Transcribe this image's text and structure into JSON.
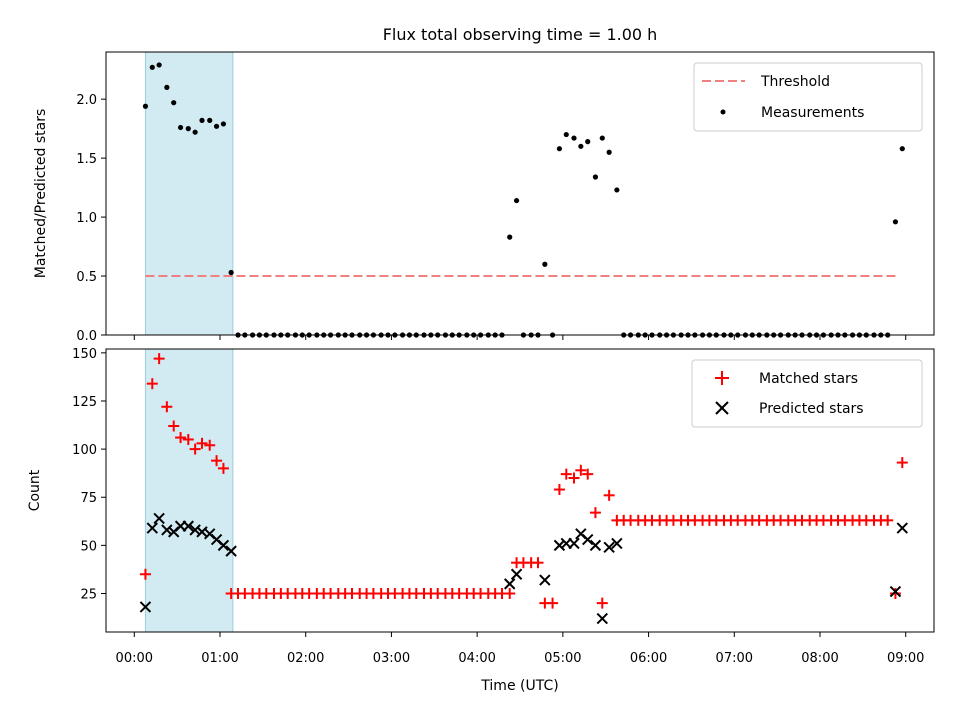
{
  "chart_data": {
    "type": "scatter",
    "title": "Flux total observing time = 1.00 h",
    "xlabel": "Time (UTC)",
    "x_ticks": [
      "00:00",
      "01:00",
      "02:00",
      "03:00",
      "04:00",
      "05:00",
      "06:00",
      "07:00",
      "08:00",
      "09:00"
    ],
    "xlim_hours": [
      -0.33,
      9.33
    ],
    "shaded_interval_hours": [
      0.13,
      1.15
    ],
    "colors": {
      "shade": "#add8e6",
      "threshold": "#f08080",
      "matched": "#ff0000",
      "predicted": "#000000",
      "measurements": "#000000"
    },
    "top_panel": {
      "ylabel": "Matched/Predicted stars",
      "ylim": [
        0,
        2.4
      ],
      "yticks": [
        "0.0",
        "0.5",
        "1.0",
        "1.5",
        "2.0"
      ],
      "legend_position": "top-right",
      "threshold": {
        "name": "Threshold",
        "value": 0.5,
        "x_range_hours": [
          0.13,
          8.88
        ]
      },
      "measurements": {
        "name": "Measurements",
        "points": [
          [
            0.13,
            1.94
          ],
          [
            0.21,
            2.27
          ],
          [
            0.29,
            2.29
          ],
          [
            0.38,
            2.1
          ],
          [
            0.46,
            1.97
          ],
          [
            0.54,
            1.76
          ],
          [
            0.63,
            1.75
          ],
          [
            0.71,
            1.72
          ],
          [
            0.79,
            1.82
          ],
          [
            0.88,
            1.82
          ],
          [
            0.96,
            1.77
          ],
          [
            1.04,
            1.79
          ],
          [
            1.13,
            0.53
          ],
          [
            1.21,
            0
          ],
          [
            1.29,
            0
          ],
          [
            1.38,
            0
          ],
          [
            1.46,
            0
          ],
          [
            1.54,
            0
          ],
          [
            1.63,
            0
          ],
          [
            1.71,
            0
          ],
          [
            1.79,
            0
          ],
          [
            1.88,
            0
          ],
          [
            1.96,
            0
          ],
          [
            2.04,
            0
          ],
          [
            2.13,
            0
          ],
          [
            2.21,
            0
          ],
          [
            2.29,
            0
          ],
          [
            2.38,
            0
          ],
          [
            2.46,
            0
          ],
          [
            2.54,
            0
          ],
          [
            2.63,
            0
          ],
          [
            2.71,
            0
          ],
          [
            2.79,
            0
          ],
          [
            2.88,
            0
          ],
          [
            2.96,
            0
          ],
          [
            3.04,
            0
          ],
          [
            3.13,
            0
          ],
          [
            3.21,
            0
          ],
          [
            3.29,
            0
          ],
          [
            3.38,
            0
          ],
          [
            3.46,
            0
          ],
          [
            3.54,
            0
          ],
          [
            3.63,
            0
          ],
          [
            3.71,
            0
          ],
          [
            3.79,
            0
          ],
          [
            3.88,
            0
          ],
          [
            3.96,
            0
          ],
          [
            4.04,
            0
          ],
          [
            4.13,
            0
          ],
          [
            4.21,
            0
          ],
          [
            4.29,
            0
          ],
          [
            4.38,
            0.83
          ],
          [
            4.46,
            1.14
          ],
          [
            4.54,
            0
          ],
          [
            4.63,
            0
          ],
          [
            4.71,
            0
          ],
          [
            4.79,
            0.6
          ],
          [
            4.88,
            0
          ],
          [
            4.96,
            1.58
          ],
          [
            5.04,
            1.7
          ],
          [
            5.13,
            1.67
          ],
          [
            5.21,
            1.6
          ],
          [
            5.29,
            1.64
          ],
          [
            5.38,
            1.34
          ],
          [
            5.46,
            1.67
          ],
          [
            5.54,
            1.55
          ],
          [
            5.63,
            1.23
          ],
          [
            5.71,
            0
          ],
          [
            5.79,
            0
          ],
          [
            5.88,
            0
          ],
          [
            5.96,
            0
          ],
          [
            6.04,
            0
          ],
          [
            6.13,
            0
          ],
          [
            6.21,
            0
          ],
          [
            6.29,
            0
          ],
          [
            6.38,
            0
          ],
          [
            6.46,
            0
          ],
          [
            6.54,
            0
          ],
          [
            6.63,
            0
          ],
          [
            6.71,
            0
          ],
          [
            6.79,
            0
          ],
          [
            6.88,
            0
          ],
          [
            6.96,
            0
          ],
          [
            7.04,
            0
          ],
          [
            7.13,
            0
          ],
          [
            7.21,
            0
          ],
          [
            7.29,
            0
          ],
          [
            7.38,
            0
          ],
          [
            7.46,
            0
          ],
          [
            7.54,
            0
          ],
          [
            7.63,
            0
          ],
          [
            7.71,
            0
          ],
          [
            7.79,
            0
          ],
          [
            7.88,
            0
          ],
          [
            7.96,
            0
          ],
          [
            8.04,
            0
          ],
          [
            8.13,
            0
          ],
          [
            8.21,
            0
          ],
          [
            8.29,
            0
          ],
          [
            8.38,
            0
          ],
          [
            8.46,
            0
          ],
          [
            8.54,
            0
          ],
          [
            8.63,
            0
          ],
          [
            8.71,
            0
          ],
          [
            8.79,
            0
          ],
          [
            8.88,
            0.96
          ],
          [
            8.96,
            1.58
          ]
        ]
      }
    },
    "bottom_panel": {
      "ylabel": "Count",
      "ylim": [
        5,
        152
      ],
      "yticks": [
        "25",
        "50",
        "75",
        "100",
        "125",
        "150"
      ],
      "legend_position": "top-right",
      "series": [
        {
          "name": "Matched stars",
          "marker": "plus",
          "points": [
            [
              0.13,
              35
            ],
            [
              0.21,
              134
            ],
            [
              0.29,
              147
            ],
            [
              0.38,
              122
            ],
            [
              0.46,
              112
            ],
            [
              0.54,
              106
            ],
            [
              0.63,
              105
            ],
            [
              0.71,
              100
            ],
            [
              0.79,
              103
            ],
            [
              0.88,
              102
            ],
            [
              0.96,
              94
            ],
            [
              1.04,
              90
            ],
            [
              1.13,
              25
            ],
            [
              1.21,
              25
            ],
            [
              1.29,
              25
            ],
            [
              1.38,
              25
            ],
            [
              1.46,
              25
            ],
            [
              1.54,
              25
            ],
            [
              1.63,
              25
            ],
            [
              1.71,
              25
            ],
            [
              1.79,
              25
            ],
            [
              1.88,
              25
            ],
            [
              1.96,
              25
            ],
            [
              2.04,
              25
            ],
            [
              2.13,
              25
            ],
            [
              2.21,
              25
            ],
            [
              2.29,
              25
            ],
            [
              2.38,
              25
            ],
            [
              2.46,
              25
            ],
            [
              2.54,
              25
            ],
            [
              2.63,
              25
            ],
            [
              2.71,
              25
            ],
            [
              2.79,
              25
            ],
            [
              2.88,
              25
            ],
            [
              2.96,
              25
            ],
            [
              3.04,
              25
            ],
            [
              3.13,
              25
            ],
            [
              3.21,
              25
            ],
            [
              3.29,
              25
            ],
            [
              3.38,
              25
            ],
            [
              3.46,
              25
            ],
            [
              3.54,
              25
            ],
            [
              3.63,
              25
            ],
            [
              3.71,
              25
            ],
            [
              3.79,
              25
            ],
            [
              3.88,
              25
            ],
            [
              3.96,
              25
            ],
            [
              4.04,
              25
            ],
            [
              4.13,
              25
            ],
            [
              4.21,
              25
            ],
            [
              4.29,
              25
            ],
            [
              4.38,
              25
            ],
            [
              4.46,
              41
            ],
            [
              4.54,
              41
            ],
            [
              4.63,
              41
            ],
            [
              4.71,
              41
            ],
            [
              4.79,
              20
            ],
            [
              4.88,
              20
            ],
            [
              4.96,
              79
            ],
            [
              5.04,
              87
            ],
            [
              5.13,
              85
            ],
            [
              5.21,
              89
            ],
            [
              5.29,
              87
            ],
            [
              5.38,
              67
            ],
            [
              5.46,
              20
            ],
            [
              5.54,
              76
            ],
            [
              5.63,
              63
            ],
            [
              5.71,
              63
            ],
            [
              5.79,
              63
            ],
            [
              5.88,
              63
            ],
            [
              5.96,
              63
            ],
            [
              6.04,
              63
            ],
            [
              6.13,
              63
            ],
            [
              6.21,
              63
            ],
            [
              6.29,
              63
            ],
            [
              6.38,
              63
            ],
            [
              6.46,
              63
            ],
            [
              6.54,
              63
            ],
            [
              6.63,
              63
            ],
            [
              6.71,
              63
            ],
            [
              6.79,
              63
            ],
            [
              6.88,
              63
            ],
            [
              6.96,
              63
            ],
            [
              7.04,
              63
            ],
            [
              7.13,
              63
            ],
            [
              7.21,
              63
            ],
            [
              7.29,
              63
            ],
            [
              7.38,
              63
            ],
            [
              7.46,
              63
            ],
            [
              7.54,
              63
            ],
            [
              7.63,
              63
            ],
            [
              7.71,
              63
            ],
            [
              7.79,
              63
            ],
            [
              7.88,
              63
            ],
            [
              7.96,
              63
            ],
            [
              8.04,
              63
            ],
            [
              8.13,
              63
            ],
            [
              8.21,
              63
            ],
            [
              8.29,
              63
            ],
            [
              8.38,
              63
            ],
            [
              8.46,
              63
            ],
            [
              8.54,
              63
            ],
            [
              8.63,
              63
            ],
            [
              8.71,
              63
            ],
            [
              8.79,
              63
            ],
            [
              8.88,
              25
            ],
            [
              8.96,
              93
            ]
          ]
        },
        {
          "name": "Predicted stars",
          "marker": "x",
          "points": [
            [
              0.13,
              18
            ],
            [
              0.21,
              59
            ],
            [
              0.29,
              64
            ],
            [
              0.38,
              58
            ],
            [
              0.46,
              57
            ],
            [
              0.54,
              60
            ],
            [
              0.63,
              60
            ],
            [
              0.71,
              58
            ],
            [
              0.79,
              57
            ],
            [
              0.88,
              56
            ],
            [
              0.96,
              53
            ],
            [
              1.04,
              50
            ],
            [
              1.13,
              47
            ],
            [
              4.38,
              30
            ],
            [
              4.46,
              35
            ],
            [
              4.79,
              32
            ],
            [
              4.96,
              50
            ],
            [
              5.04,
              51
            ],
            [
              5.13,
              51
            ],
            [
              5.21,
              56
            ],
            [
              5.29,
              53
            ],
            [
              5.38,
              50
            ],
            [
              5.46,
              12
            ],
            [
              5.54,
              49
            ],
            [
              5.63,
              51
            ],
            [
              8.88,
              26
            ],
            [
              8.96,
              59
            ]
          ]
        }
      ]
    }
  }
}
